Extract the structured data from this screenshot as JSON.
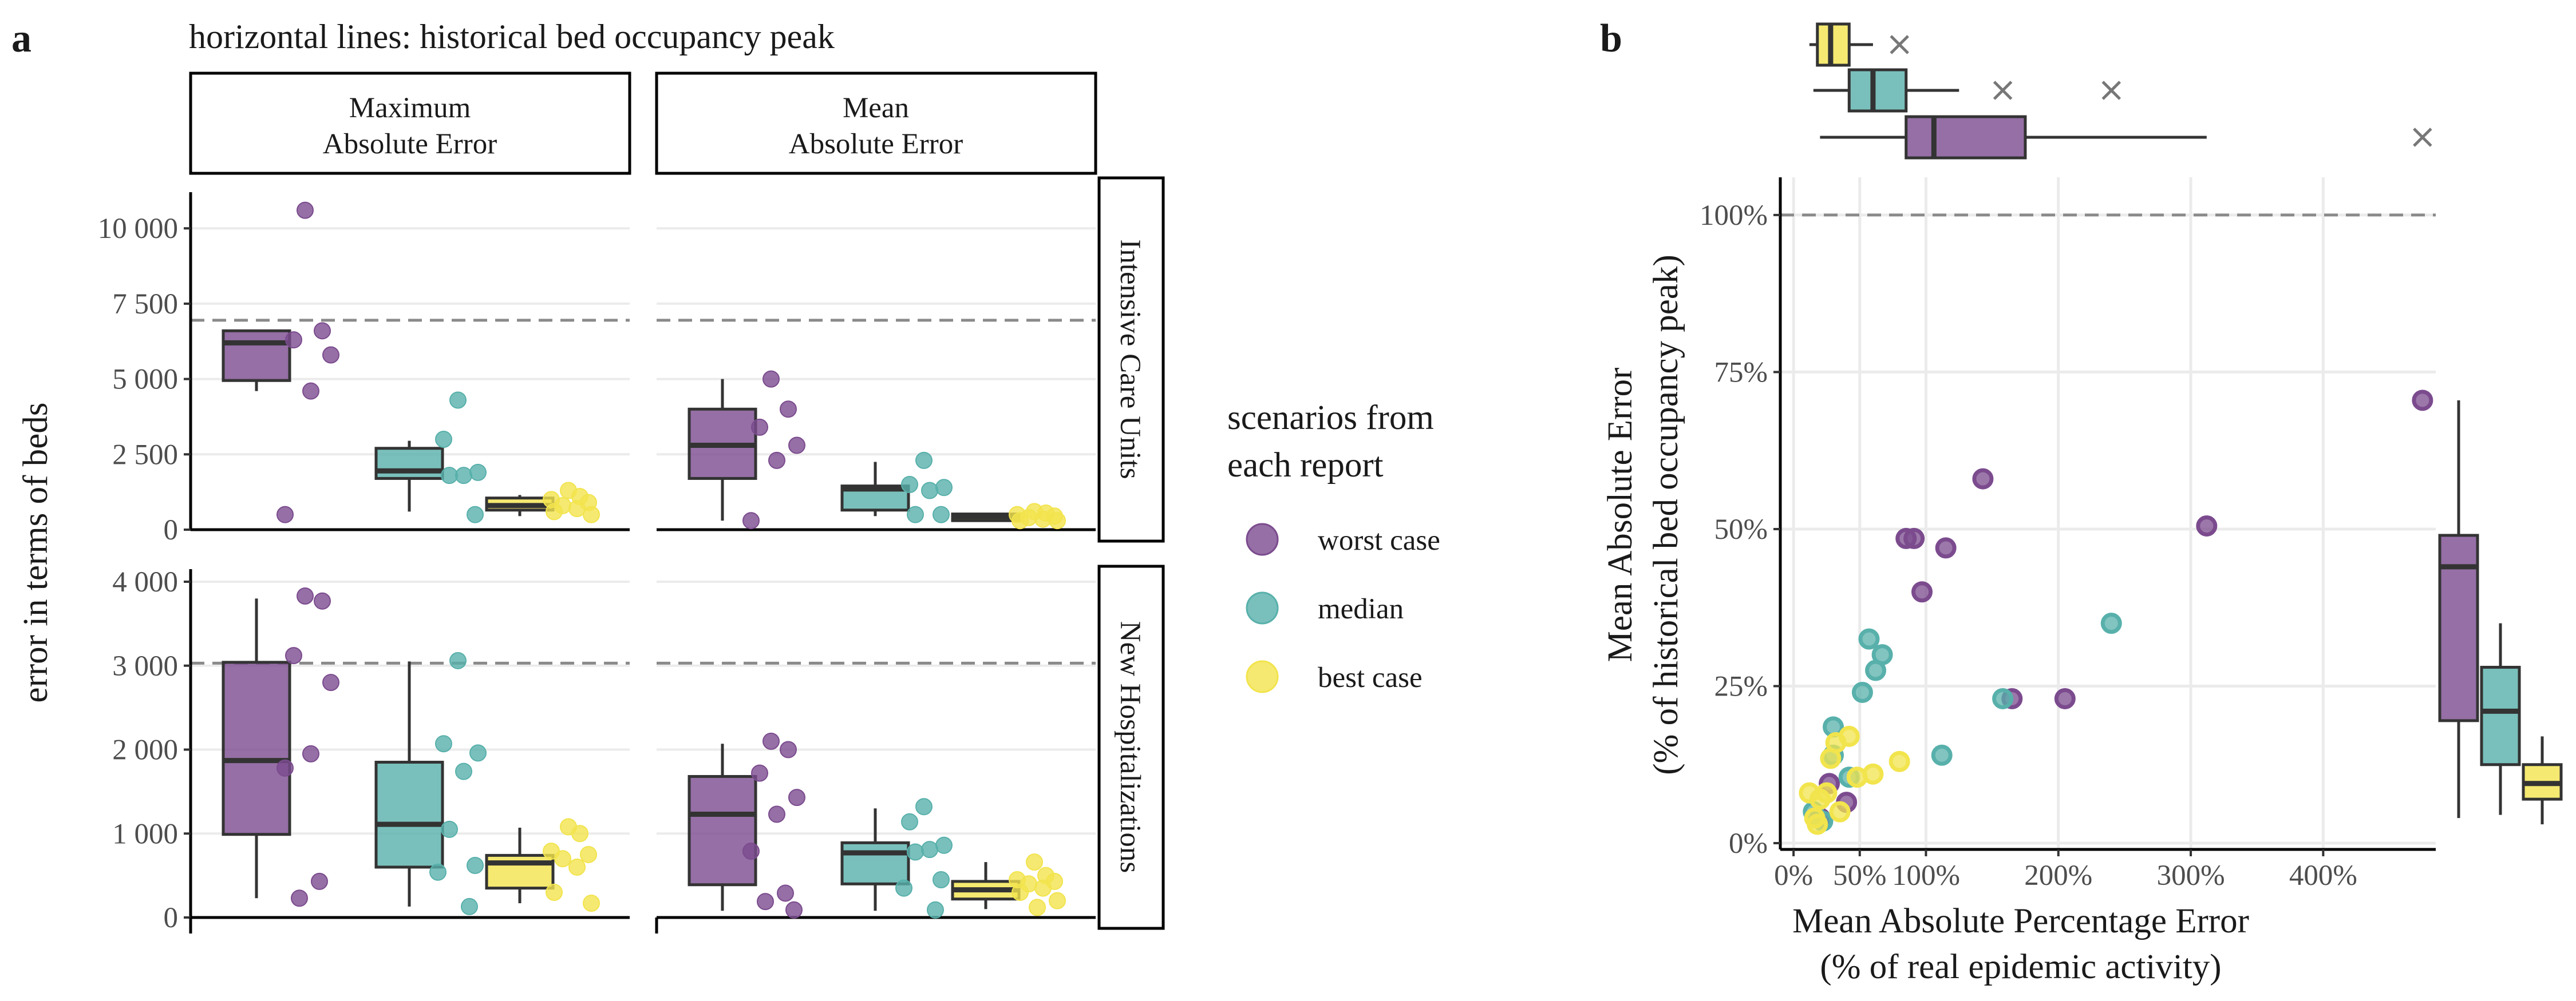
{
  "figure": {
    "panel_a_letter": "a",
    "panel_b_letter": "b",
    "legend_title_1": "scenarios from",
    "legend_title_2": "each report",
    "legend_items": [
      {
        "label": "worst case",
        "color": "#7b4b8e"
      },
      {
        "label": "median",
        "color": "#58b0ab"
      },
      {
        "label": "best case",
        "color": "#f2e44d"
      }
    ]
  },
  "chart_data": [
    {
      "type": "box",
      "panel": "a",
      "title": "horizontal lines: historical bed occupancy peak",
      "ylabel": "error in terms of beds",
      "columns": [
        "Maximum\nAbsolute Error",
        "Mean\nAbsolute Error"
      ],
      "column_labels": [
        [
          "Maximum",
          "Absolute Error"
        ],
        [
          "Mean",
          "Absolute Error"
        ]
      ],
      "rows": [
        "Intensive Care Units",
        "New Hospitalizations"
      ],
      "scenarios": [
        "worst case",
        "median",
        "best case"
      ],
      "colors": {
        "worst case": "#7b4b8e",
        "median": "#58b0ab",
        "best case": "#f2e44d"
      },
      "facets": [
        {
          "row": "Intensive Care Units",
          "col": "Maximum\nAbsolute Error",
          "ylim": [
            0,
            11200
          ],
          "yticks": [
            0,
            2500,
            5000,
            7500,
            10000
          ],
          "ytick_labels": [
            "0",
            "2 500",
            "5 000",
            "7 500",
            "10 000"
          ],
          "hline": 6950,
          "boxes": [
            {
              "scenario": "worst case",
              "whisker_low": 4600,
              "q1": 4950,
              "median": 6200,
              "q3": 6600,
              "whisker_high": 6600
            },
            {
              "scenario": "median",
              "whisker_low": 600,
              "q1": 1700,
              "median": 1950,
              "q3": 2700,
              "whisker_high": 2950
            },
            {
              "scenario": "best case",
              "whisker_low": 450,
              "q1": 650,
              "median": 800,
              "q3": 1050,
              "whisker_high": 1150
            }
          ],
          "points": [
            {
              "scenario": "worst case",
              "values": [
                10600,
                6600,
                6300,
                5800,
                4600,
                500
              ]
            },
            {
              "scenario": "median",
              "values": [
                4300,
                3000,
                1900,
                1800,
                1800,
                500
              ]
            },
            {
              "scenario": "best case",
              "values": [
                1300,
                1100,
                1000,
                900,
                800,
                700,
                600,
                500
              ]
            }
          ]
        },
        {
          "row": "Intensive Care Units",
          "col": "Mean\nAbsolute Error",
          "ylim": [
            0,
            11200
          ],
          "yticks": [
            0,
            2500,
            5000,
            7500,
            10000
          ],
          "ytick_labels": [
            "0",
            "2 500",
            "5 000",
            "7 500",
            "10 000"
          ],
          "hline": 6950,
          "boxes": [
            {
              "scenario": "worst case",
              "whisker_low": 300,
              "q1": 1700,
              "median": 2800,
              "q3": 4000,
              "whisker_high": 5000
            },
            {
              "scenario": "median",
              "whisker_low": 450,
              "q1": 650,
              "median": 1350,
              "q3": 1450,
              "whisker_high": 2250
            },
            {
              "scenario": "best case",
              "whisker_low": 300,
              "q1": 300,
              "median": 430,
              "q3": 520,
              "whisker_high": 550
            }
          ],
          "points": [
            {
              "scenario": "worst case",
              "values": [
                5000,
                4000,
                3400,
                2800,
                2300,
                300
              ]
            },
            {
              "scenario": "median",
              "values": [
                2300,
                1500,
                1400,
                1300,
                500,
                500
              ]
            },
            {
              "scenario": "best case",
              "values": [
                600,
                550,
                500,
                450,
                400,
                350,
                300,
                300
              ]
            }
          ]
        },
        {
          "row": "New Hospitalizations",
          "col": "Maximum\nAbsolute Error",
          "ylim": [
            0,
            4150
          ],
          "yticks": [
            0,
            1000,
            2000,
            3000,
            4000
          ],
          "ytick_labels": [
            "0",
            "1 000",
            "2 000",
            "3 000",
            "4 000"
          ],
          "hline": 3030,
          "boxes": [
            {
              "scenario": "worst case",
              "whisker_low": 230,
              "q1": 990,
              "median": 1870,
              "q3": 3040,
              "whisker_high": 3800
            },
            {
              "scenario": "median",
              "whisker_low": 130,
              "q1": 600,
              "median": 1110,
              "q3": 1850,
              "whisker_high": 3050
            },
            {
              "scenario": "best case",
              "whisker_low": 170,
              "q1": 350,
              "median": 650,
              "q3": 740,
              "whisker_high": 1070
            }
          ],
          "points": [
            {
              "scenario": "worst case",
              "values": [
                3830,
                3770,
                3120,
                2800,
                1950,
                1780,
                430,
                230
              ]
            },
            {
              "scenario": "median",
              "values": [
                3060,
                2070,
                1960,
                1740,
                1050,
                620,
                540,
                130
              ]
            },
            {
              "scenario": "best case",
              "values": [
                1080,
                1000,
                790,
                750,
                700,
                600,
                300,
                170
              ]
            }
          ]
        },
        {
          "row": "New Hospitalizations",
          "col": "Mean\nAbsolute Error",
          "ylim": [
            0,
            4150
          ],
          "yticks": [
            0,
            1000,
            2000,
            3000,
            4000
          ],
          "ytick_labels": [
            "0",
            "1 000",
            "2 000",
            "3 000",
            "4 000"
          ],
          "hline": 3030,
          "boxes": [
            {
              "scenario": "worst case",
              "whisker_low": 80,
              "q1": 390,
              "median": 1230,
              "q3": 1680,
              "whisker_high": 2070
            },
            {
              "scenario": "median",
              "whisker_low": 80,
              "q1": 400,
              "median": 770,
              "q3": 890,
              "whisker_high": 1300
            },
            {
              "scenario": "best case",
              "whisker_low": 100,
              "q1": 220,
              "median": 330,
              "q3": 430,
              "whisker_high": 660
            }
          ],
          "points": [
            {
              "scenario": "worst case",
              "values": [
                2100,
                2000,
                1720,
                1430,
                1230,
                790,
                290,
                190,
                90
              ]
            },
            {
              "scenario": "median",
              "values": [
                1320,
                1140,
                860,
                810,
                780,
                450,
                350,
                90
              ]
            },
            {
              "scenario": "best case",
              "values": [
                660,
                500,
                450,
                430,
                400,
                350,
                300,
                200,
                120
              ]
            }
          ]
        }
      ]
    },
    {
      "type": "scatter",
      "panel": "b",
      "xlabel": "Mean Absolute Percentage Error",
      "xlabel2": "(% of real epidemic activity)",
      "ylabel": "Mean Absolute Error",
      "ylabel2": "(% of historical bed occupancy peak)",
      "xlim": [
        -10,
        485
      ],
      "ylim": [
        -1,
        106
      ],
      "xticks": [
        0,
        50,
        100,
        200,
        300,
        400
      ],
      "xtick_labels": [
        "0%",
        "50%",
        "100%",
        "200%",
        "300%",
        "400%"
      ],
      "yticks": [
        0,
        25,
        50,
        75,
        100
      ],
      "ytick_labels": [
        "0%",
        "25%",
        "50%",
        "75%",
        "100%"
      ],
      "hline": 100,
      "series": [
        {
          "name": "worst case",
          "color": "#7b4b8e",
          "x": [
            475,
            312,
            143,
            85,
            91,
            115,
            97,
            205,
            165,
            27,
            20,
            40
          ],
          "y": [
            70.5,
            50.5,
            58,
            48.5,
            48.5,
            47,
            40,
            23,
            23,
            9.5,
            4,
            6.5
          ]
        },
        {
          "name": "median",
          "color": "#58b0ab",
          "x": [
            240,
            158,
            112,
            57,
            67,
            62,
            52,
            30,
            30,
            15,
            42,
            22
          ],
          "y": [
            35,
            23,
            14,
            32.5,
            30,
            27.5,
            24,
            18.5,
            14,
            5,
            10.5,
            3.5
          ]
        },
        {
          "name": "best case",
          "color": "#f2e44d",
          "x": [
            80,
            42,
            32,
            28,
            25,
            35,
            20,
            16,
            12,
            48,
            60,
            18
          ],
          "y": [
            13,
            17,
            16,
            13.5,
            8,
            5,
            7,
            4,
            8,
            10.5,
            11,
            3
          ]
        }
      ],
      "marginal_x_boxes": [
        {
          "scenario": "best case",
          "whisker_low": 12,
          "q1": 18,
          "median": 28,
          "q3": 42,
          "whisker_high": 60,
          "outliers": [
            80
          ]
        },
        {
          "scenario": "median",
          "whisker_low": 15,
          "q1": 42,
          "median": 60,
          "q3": 85,
          "whisker_high": 125,
          "outliers": [
            158,
            240
          ]
        },
        {
          "scenario": "worst case",
          "whisker_low": 20,
          "q1": 85,
          "median": 106,
          "q3": 175,
          "whisker_high": 312,
          "outliers": [
            475
          ]
        }
      ],
      "marginal_y_boxes": [
        {
          "scenario": "worst case",
          "whisker_low": 4,
          "q1": 19.5,
          "median": 44,
          "q3": 49,
          "whisker_high": 70.5
        },
        {
          "scenario": "median",
          "whisker_low": 4.5,
          "q1": 12.5,
          "median": 21,
          "q3": 28,
          "whisker_high": 35
        },
        {
          "scenario": "best case",
          "whisker_low": 3,
          "q1": 7,
          "median": 9.5,
          "q3": 12.5,
          "whisker_high": 17
        }
      ]
    }
  ]
}
